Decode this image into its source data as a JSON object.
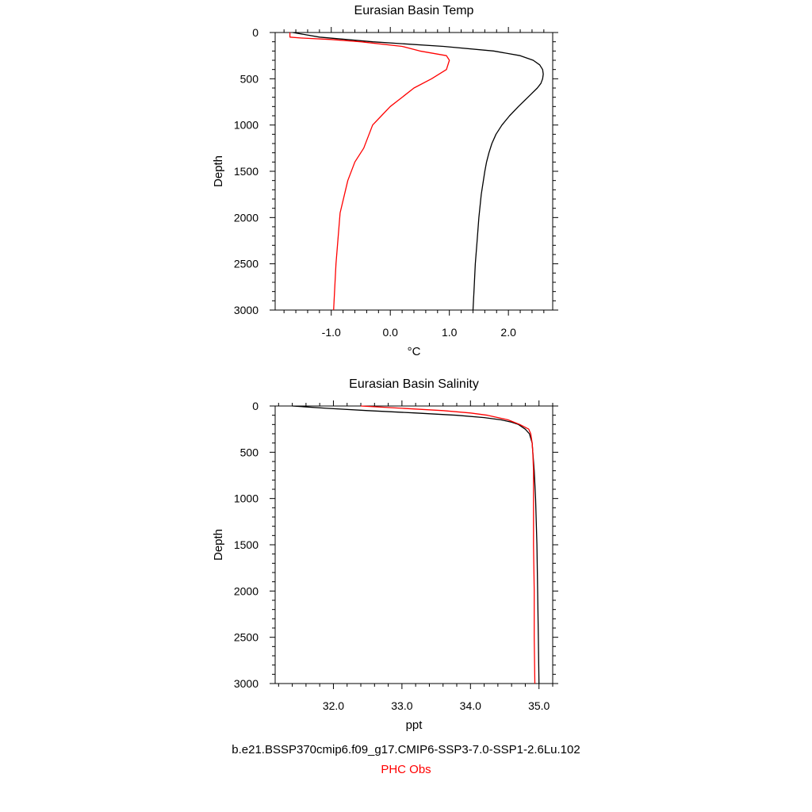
{
  "chart_data": [
    {
      "type": "line",
      "title": "Eurasian Basin Temp",
      "xlabel": "°C",
      "ylabel": "Depth",
      "xlim": [
        -1.95,
        2.75
      ],
      "ylim": [
        3000,
        0
      ],
      "x_ticks": [
        -1.0,
        0.0,
        1.0,
        2.0
      ],
      "x_tick_labels": [
        "-1.0",
        "0.0",
        "1.0",
        "2.0"
      ],
      "y_ticks": [
        0,
        500,
        1000,
        1500,
        2000,
        2500,
        3000
      ],
      "y_tick_labels": [
        "0",
        "500",
        "1000",
        "1500",
        "2000",
        "2500",
        "3000"
      ],
      "grid": false,
      "series": [
        {
          "color": "#000000",
          "depth": [
            0,
            50,
            100,
            150,
            200,
            250,
            300,
            350,
            400,
            450,
            500,
            550,
            600,
            700,
            800,
            900,
            1000,
            1100,
            1200,
            1300,
            1400,
            1500,
            1750,
            2000,
            2250,
            2500,
            2750,
            3000
          ],
          "value": [
            -1.65,
            -1.2,
            -0.3,
            0.9,
            1.75,
            2.2,
            2.42,
            2.53,
            2.58,
            2.59,
            2.58,
            2.55,
            2.49,
            2.33,
            2.17,
            2.02,
            1.89,
            1.79,
            1.72,
            1.67,
            1.63,
            1.6,
            1.54,
            1.5,
            1.47,
            1.44,
            1.42,
            1.4
          ]
        },
        {
          "color": "#ff0000",
          "depth": [
            0,
            50,
            60,
            75,
            100,
            150,
            200,
            250,
            300,
            400,
            500,
            600,
            700,
            800,
            900,
            1000,
            1250,
            1400,
            1600,
            1950,
            2500,
            3000
          ],
          "value": [
            -1.7,
            -1.7,
            -1.5,
            -1.0,
            -0.5,
            0.2,
            0.5,
            0.95,
            1.0,
            0.95,
            0.7,
            0.4,
            0.2,
            0.0,
            -0.15,
            -0.3,
            -0.45,
            -0.6,
            -0.72,
            -0.85,
            -0.92,
            -0.96
          ]
        }
      ]
    },
    {
      "type": "line",
      "title": "Eurasian Basin Salinity",
      "xlabel": "ppt",
      "ylabel": "Depth",
      "xlim": [
        31.15,
        35.2
      ],
      "ylim": [
        3000,
        0
      ],
      "x_ticks": [
        32.0,
        33.0,
        34.0,
        35.0
      ],
      "x_tick_labels": [
        "32.0",
        "33.0",
        "34.0",
        "35.0"
      ],
      "y_ticks": [
        0,
        500,
        1000,
        1500,
        2000,
        2500,
        3000
      ],
      "y_tick_labels": [
        "0",
        "500",
        "1000",
        "1500",
        "2000",
        "2500",
        "3000"
      ],
      "grid": false,
      "series": [
        {
          "color": "#000000",
          "depth": [
            0,
            25,
            50,
            75,
            100,
            125,
            150,
            175,
            200,
            250,
            300,
            400,
            500,
            700,
            1000,
            1500,
            2000,
            2500,
            3000
          ],
          "value": [
            31.4,
            31.9,
            32.5,
            33.2,
            33.8,
            34.2,
            34.45,
            34.6,
            34.7,
            34.8,
            34.86,
            34.9,
            34.91,
            34.93,
            34.95,
            34.97,
            34.98,
            34.99,
            35.0
          ]
        },
        {
          "color": "#ff0000",
          "depth": [
            0,
            25,
            50,
            75,
            100,
            150,
            200,
            250,
            300,
            400,
            500,
            700,
            1000,
            1500,
            2000,
            2500,
            3000
          ],
          "value": [
            32.4,
            33.0,
            33.6,
            34.0,
            34.25,
            34.55,
            34.72,
            34.85,
            34.88,
            34.9,
            34.91,
            34.92,
            34.92,
            34.92,
            34.93,
            34.93,
            34.94
          ]
        }
      ]
    }
  ],
  "legend": {
    "model_run": "b.e21.BSSP370cmip6.f09_g17.CMIP6-SSP3-7.0-SSP1-2.6Lu.102",
    "obs": "PHC Obs",
    "model_color": "#000000",
    "obs_color": "#ff0000"
  }
}
